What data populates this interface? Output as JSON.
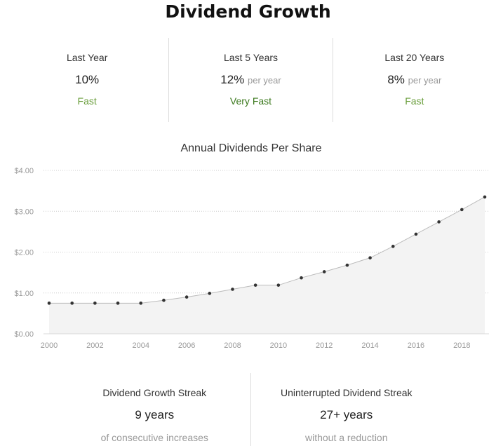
{
  "header": {
    "title": "Dividend Growth"
  },
  "growth_stats": [
    {
      "label": "Last Year",
      "value": "10%",
      "suffix": "",
      "rating": "Fast"
    },
    {
      "label": "Last 5 Years",
      "value": "12%",
      "suffix": "per year",
      "rating": "Very Fast"
    },
    {
      "label": "Last 20 Years",
      "value": "8%",
      "suffix": "per year",
      "rating": "Fast"
    }
  ],
  "chart_data": {
    "type": "area",
    "title": "Annual Dividends Per Share",
    "xlabel": "",
    "ylabel": "",
    "x": [
      2000,
      2001,
      2002,
      2003,
      2004,
      2005,
      2006,
      2007,
      2008,
      2009,
      2010,
      2011,
      2012,
      2013,
      2014,
      2015,
      2016,
      2017,
      2018,
      2019
    ],
    "values": [
      0.75,
      0.75,
      0.75,
      0.75,
      0.75,
      0.82,
      0.9,
      0.99,
      1.09,
      1.19,
      1.19,
      1.37,
      1.52,
      1.68,
      1.86,
      2.14,
      2.44,
      2.74,
      3.04,
      3.35
    ],
    "xlim": [
      2000,
      2019
    ],
    "ylim": [
      0,
      4
    ],
    "x_ticks": [
      "2000",
      "2002",
      "2004",
      "2006",
      "2008",
      "2010",
      "2012",
      "2014",
      "2016",
      "2018"
    ],
    "y_ticks": [
      "$0.00",
      "$1.00",
      "$2.00",
      "$3.00",
      "$4.00"
    ],
    "grid": true,
    "legend": "none",
    "colors": {
      "line": "#bbbbbb",
      "fill": "#f3f3f3",
      "point": "#333333",
      "grid": "#cccccc"
    }
  },
  "streaks": [
    {
      "label": "Dividend Growth Streak",
      "value": "9 years",
      "sub": "of consecutive increases"
    },
    {
      "label": "Uninterrupted Dividend Streak",
      "value": "27+ years",
      "sub": "without a reduction"
    }
  ]
}
